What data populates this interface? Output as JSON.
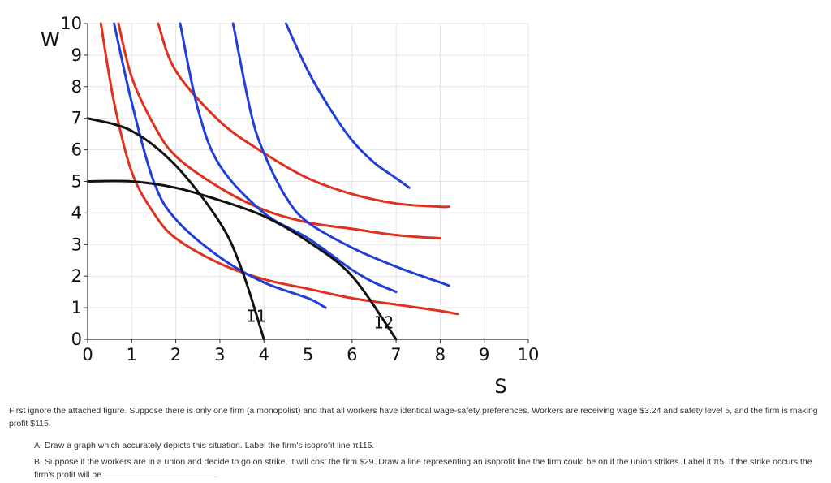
{
  "chart_data": {
    "type": "line",
    "xlabel": "S",
    "ylabel": "W",
    "xlim": [
      0,
      10
    ],
    "ylim": [
      0,
      10
    ],
    "x_ticks": [
      "0",
      "1",
      "2",
      "3",
      "4",
      "5",
      "6",
      "7",
      "8",
      "9",
      "10"
    ],
    "y_ticks": [
      "0",
      "1",
      "2",
      "3",
      "4",
      "5",
      "6",
      "7",
      "8",
      "9",
      "10"
    ],
    "grid": true,
    "series": [
      {
        "name": "I1",
        "color": "#111111",
        "points": [
          [
            0,
            7.0
          ],
          [
            1,
            6.6
          ],
          [
            2,
            5.5
          ],
          [
            3,
            3.7
          ],
          [
            3.5,
            2.2
          ],
          [
            4,
            0
          ]
        ]
      },
      {
        "name": "I2",
        "color": "#111111",
        "points": [
          [
            0,
            5.0
          ],
          [
            1,
            5.0
          ],
          [
            2,
            4.8
          ],
          [
            3,
            4.4
          ],
          [
            4,
            3.9
          ],
          [
            5,
            3.1
          ],
          [
            6,
            2.0
          ],
          [
            7,
            0
          ]
        ]
      },
      {
        "color": "#e0301e",
        "points": [
          [
            0.3,
            10.0
          ],
          [
            0.6,
            7.5
          ],
          [
            1,
            5.3
          ],
          [
            1.5,
            4.0
          ],
          [
            2,
            3.2
          ],
          [
            3,
            2.4
          ],
          [
            4,
            1.9
          ],
          [
            5,
            1.6
          ],
          [
            6,
            1.3
          ],
          [
            7,
            1.1
          ],
          [
            8,
            0.9
          ],
          [
            8.4,
            0.8
          ]
        ]
      },
      {
        "color": "#e0301e",
        "points": [
          [
            0.7,
            10.0
          ],
          [
            1,
            8.3
          ],
          [
            1.5,
            6.8
          ],
          [
            2,
            5.8
          ],
          [
            3,
            4.8
          ],
          [
            4,
            4.1
          ],
          [
            5,
            3.7
          ],
          [
            6,
            3.5
          ],
          [
            7,
            3.3
          ],
          [
            8,
            3.2
          ]
        ]
      },
      {
        "color": "#e0301e",
        "points": [
          [
            1.6,
            10.0
          ],
          [
            2,
            8.5
          ],
          [
            3,
            6.9
          ],
          [
            4,
            5.9
          ],
          [
            5,
            5.1
          ],
          [
            6,
            4.6
          ],
          [
            7,
            4.3
          ],
          [
            8,
            4.2
          ],
          [
            8.2,
            4.2
          ]
        ]
      },
      {
        "color": "#1f3fd6",
        "points": [
          [
            0.6,
            10.0
          ],
          [
            1,
            7.5
          ],
          [
            1.5,
            5.0
          ],
          [
            2,
            3.8
          ],
          [
            3,
            2.6
          ],
          [
            4,
            1.8
          ],
          [
            5,
            1.3
          ],
          [
            5.4,
            1.0
          ]
        ]
      },
      {
        "color": "#1f3fd6",
        "points": [
          [
            2.1,
            10.0
          ],
          [
            2.5,
            7.3
          ],
          [
            3,
            5.5
          ],
          [
            4,
            4.0
          ],
          [
            5,
            3.2
          ],
          [
            6,
            2.2
          ],
          [
            6.5,
            1.8
          ],
          [
            7,
            1.5
          ]
        ]
      },
      {
        "color": "#1f3fd6",
        "points": [
          [
            3.3,
            10.0
          ],
          [
            3.7,
            7.2
          ],
          [
            4,
            5.9
          ],
          [
            4.5,
            4.5
          ],
          [
            5,
            3.7
          ],
          [
            6,
            2.9
          ],
          [
            7,
            2.3
          ],
          [
            8,
            1.8
          ],
          [
            8.2,
            1.7
          ]
        ]
      },
      {
        "color": "#1f3fd6",
        "points": [
          [
            4.5,
            10.0
          ],
          [
            5,
            8.5
          ],
          [
            5.5,
            7.3
          ],
          [
            6,
            6.3
          ],
          [
            6.5,
            5.6
          ],
          [
            7,
            5.1
          ],
          [
            7.3,
            4.8
          ]
        ]
      }
    ],
    "labels": [
      {
        "text": "I1",
        "x": 3.6,
        "y": 0.55
      },
      {
        "text": "I2",
        "x": 6.5,
        "y": 0.35
      }
    ]
  },
  "question": {
    "intro": "First ignore the attached figure. Suppose there is only one firm (a monopolist) and that all workers have identical wage-safety preferences. Workers are receiving wage $3.24 and safety level 5, and the firm is making profit $115.",
    "part_a": "A. Draw a graph which accurately depicts this situation. Label the firm's isoprofit line π115.",
    "part_b": "B. Suppose if the workers are in a union and decide to go on strike, it will cost the firm $29. Draw a line representing an isoprofit line the firm could be on if the union strikes. Label it π5. If the strike occurs the firm's profit will be"
  }
}
